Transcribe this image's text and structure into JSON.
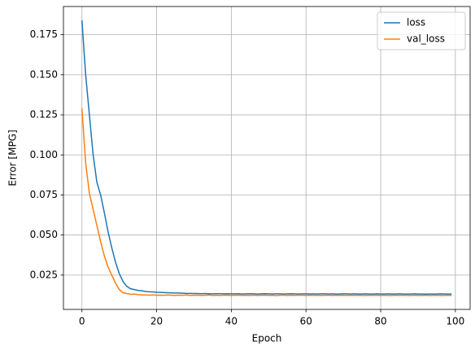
{
  "chart_data": {
    "type": "line",
    "xlabel": "Epoch",
    "ylabel": "Error [MPG]",
    "x": [
      0,
      1,
      2,
      3,
      4,
      5,
      6,
      7,
      8,
      9,
      10,
      11,
      12,
      13,
      14,
      15,
      16,
      17,
      18,
      19,
      20,
      21,
      22,
      23,
      24,
      25,
      26,
      27,
      28,
      29,
      30,
      31,
      32,
      33,
      34,
      35,
      36,
      37,
      38,
      39,
      40,
      41,
      42,
      43,
      44,
      45,
      46,
      47,
      48,
      49,
      50,
      51,
      52,
      53,
      54,
      55,
      56,
      57,
      58,
      59,
      60,
      61,
      62,
      63,
      64,
      65,
      66,
      67,
      68,
      69,
      70,
      71,
      72,
      73,
      74,
      75,
      76,
      77,
      78,
      79,
      80,
      81,
      82,
      83,
      84,
      85,
      86,
      87,
      88,
      89,
      90,
      91,
      92,
      93,
      94,
      95,
      96,
      97,
      98,
      99
    ],
    "series": [
      {
        "name": "loss",
        "color": "#1f77b4",
        "values": [
          0.184,
          0.15,
          0.125,
          0.1,
          0.083,
          0.075,
          0.064,
          0.052,
          0.042,
          0.033,
          0.026,
          0.021,
          0.018,
          0.0165,
          0.016,
          0.0155,
          0.0152,
          0.0148,
          0.0146,
          0.0145,
          0.0143,
          0.0142,
          0.0141,
          0.014,
          0.0139,
          0.0138,
          0.0138,
          0.0137,
          0.0136,
          0.0136,
          0.0135,
          0.0135,
          0.0134,
          0.0135,
          0.0134,
          0.0133,
          0.0134,
          0.0134,
          0.0133,
          0.0134,
          0.0133,
          0.0133,
          0.0134,
          0.0132,
          0.0133,
          0.0134,
          0.0133,
          0.0132,
          0.0133,
          0.0134,
          0.0133,
          0.0132,
          0.0133,
          0.0133,
          0.0132,
          0.0133,
          0.0134,
          0.0133,
          0.0132,
          0.0133,
          0.0133,
          0.0132,
          0.0133,
          0.0132,
          0.0133,
          0.0133,
          0.0132,
          0.0133,
          0.0132,
          0.0132,
          0.0133,
          0.0133,
          0.0132,
          0.0133,
          0.0132,
          0.0132,
          0.0133,
          0.0132,
          0.0132,
          0.0133,
          0.0132,
          0.0132,
          0.0133,
          0.0132,
          0.0132,
          0.0133,
          0.0132,
          0.0132,
          0.0132,
          0.0133,
          0.0132,
          0.0132,
          0.0131,
          0.0132,
          0.0132,
          0.0132,
          0.0133,
          0.0132,
          0.0132,
          0.0132
        ]
      },
      {
        "name": "val_loss",
        "color": "#ff7f0e",
        "values": [
          0.129,
          0.095,
          0.076,
          0.066,
          0.056,
          0.046,
          0.037,
          0.03,
          0.025,
          0.02,
          0.016,
          0.014,
          0.0135,
          0.013,
          0.0132,
          0.0128,
          0.0127,
          0.0126,
          0.0125,
          0.0127,
          0.0124,
          0.0125,
          0.0124,
          0.0126,
          0.0124,
          0.0123,
          0.0125,
          0.0124,
          0.0126,
          0.0123,
          0.0124,
          0.0125,
          0.0123,
          0.0124,
          0.0126,
          0.0123,
          0.0124,
          0.0123,
          0.0125,
          0.0124,
          0.0123,
          0.0124,
          0.0125,
          0.0123,
          0.0124,
          0.0123,
          0.0125,
          0.0123,
          0.0124,
          0.0125,
          0.0123,
          0.0124,
          0.0122,
          0.0124,
          0.0125,
          0.0123,
          0.0124,
          0.0123,
          0.0125,
          0.0124,
          0.0123,
          0.0124,
          0.0123,
          0.0124,
          0.0123,
          0.0124,
          0.0125,
          0.0123,
          0.0124,
          0.0123,
          0.0124,
          0.0123,
          0.0124,
          0.0123,
          0.0124,
          0.0123,
          0.0123,
          0.0124,
          0.0123,
          0.0124,
          0.0123,
          0.0124,
          0.0123,
          0.0123,
          0.0124,
          0.0123,
          0.0124,
          0.0123,
          0.0123,
          0.0124,
          0.0123,
          0.0123,
          0.0124,
          0.0123,
          0.0123,
          0.0124,
          0.0123,
          0.0123,
          0.0124,
          0.0123
        ]
      }
    ],
    "xlim": [
      -4.95,
      103.95
    ],
    "xticks": [
      0,
      20,
      40,
      60,
      80,
      100
    ],
    "ylim": [
      0.0036,
      0.1926
    ],
    "yticks": [
      0.025,
      {
        "value": 0.05,
        "label": "0.050"
      },
      0.075,
      {
        "value": 0.1,
        "label": "0.100"
      },
      0.125,
      {
        "value": 0.15,
        "label": "0.150"
      },
      0.175
    ],
    "grid": true,
    "legend": "upper right"
  }
}
